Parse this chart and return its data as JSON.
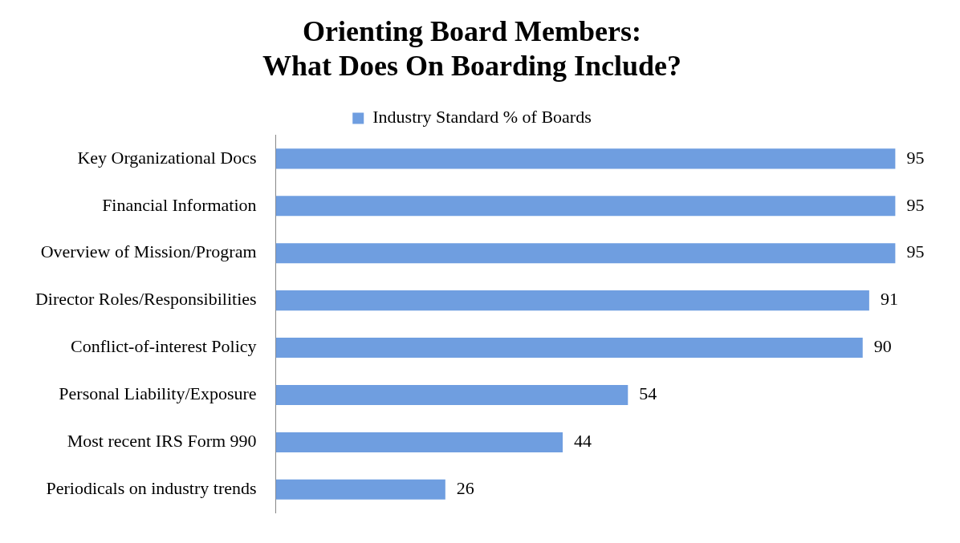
{
  "chart_data": {
    "type": "bar",
    "orientation": "horizontal",
    "title": "Orienting Board Members:\nWhat Does On Boarding Include?",
    "categories": [
      "Key Organizational Docs",
      "Financial Information",
      "Overview of Mission/Program",
      "Director Roles/Responsibilities",
      "Conflict-of-interest Policy",
      "Personal Liability/Exposure",
      "Most recent IRS Form 990",
      "Periodicals on industry trends"
    ],
    "series": [
      {
        "name": "Industry Standard % of Boards",
        "color": "#6f9ee0",
        "values": [
          95,
          95,
          95,
          91,
          90,
          54,
          44,
          26
        ]
      }
    ],
    "data_labels": true,
    "legend": "top",
    "grid": false,
    "tick_labels": "y"
  }
}
